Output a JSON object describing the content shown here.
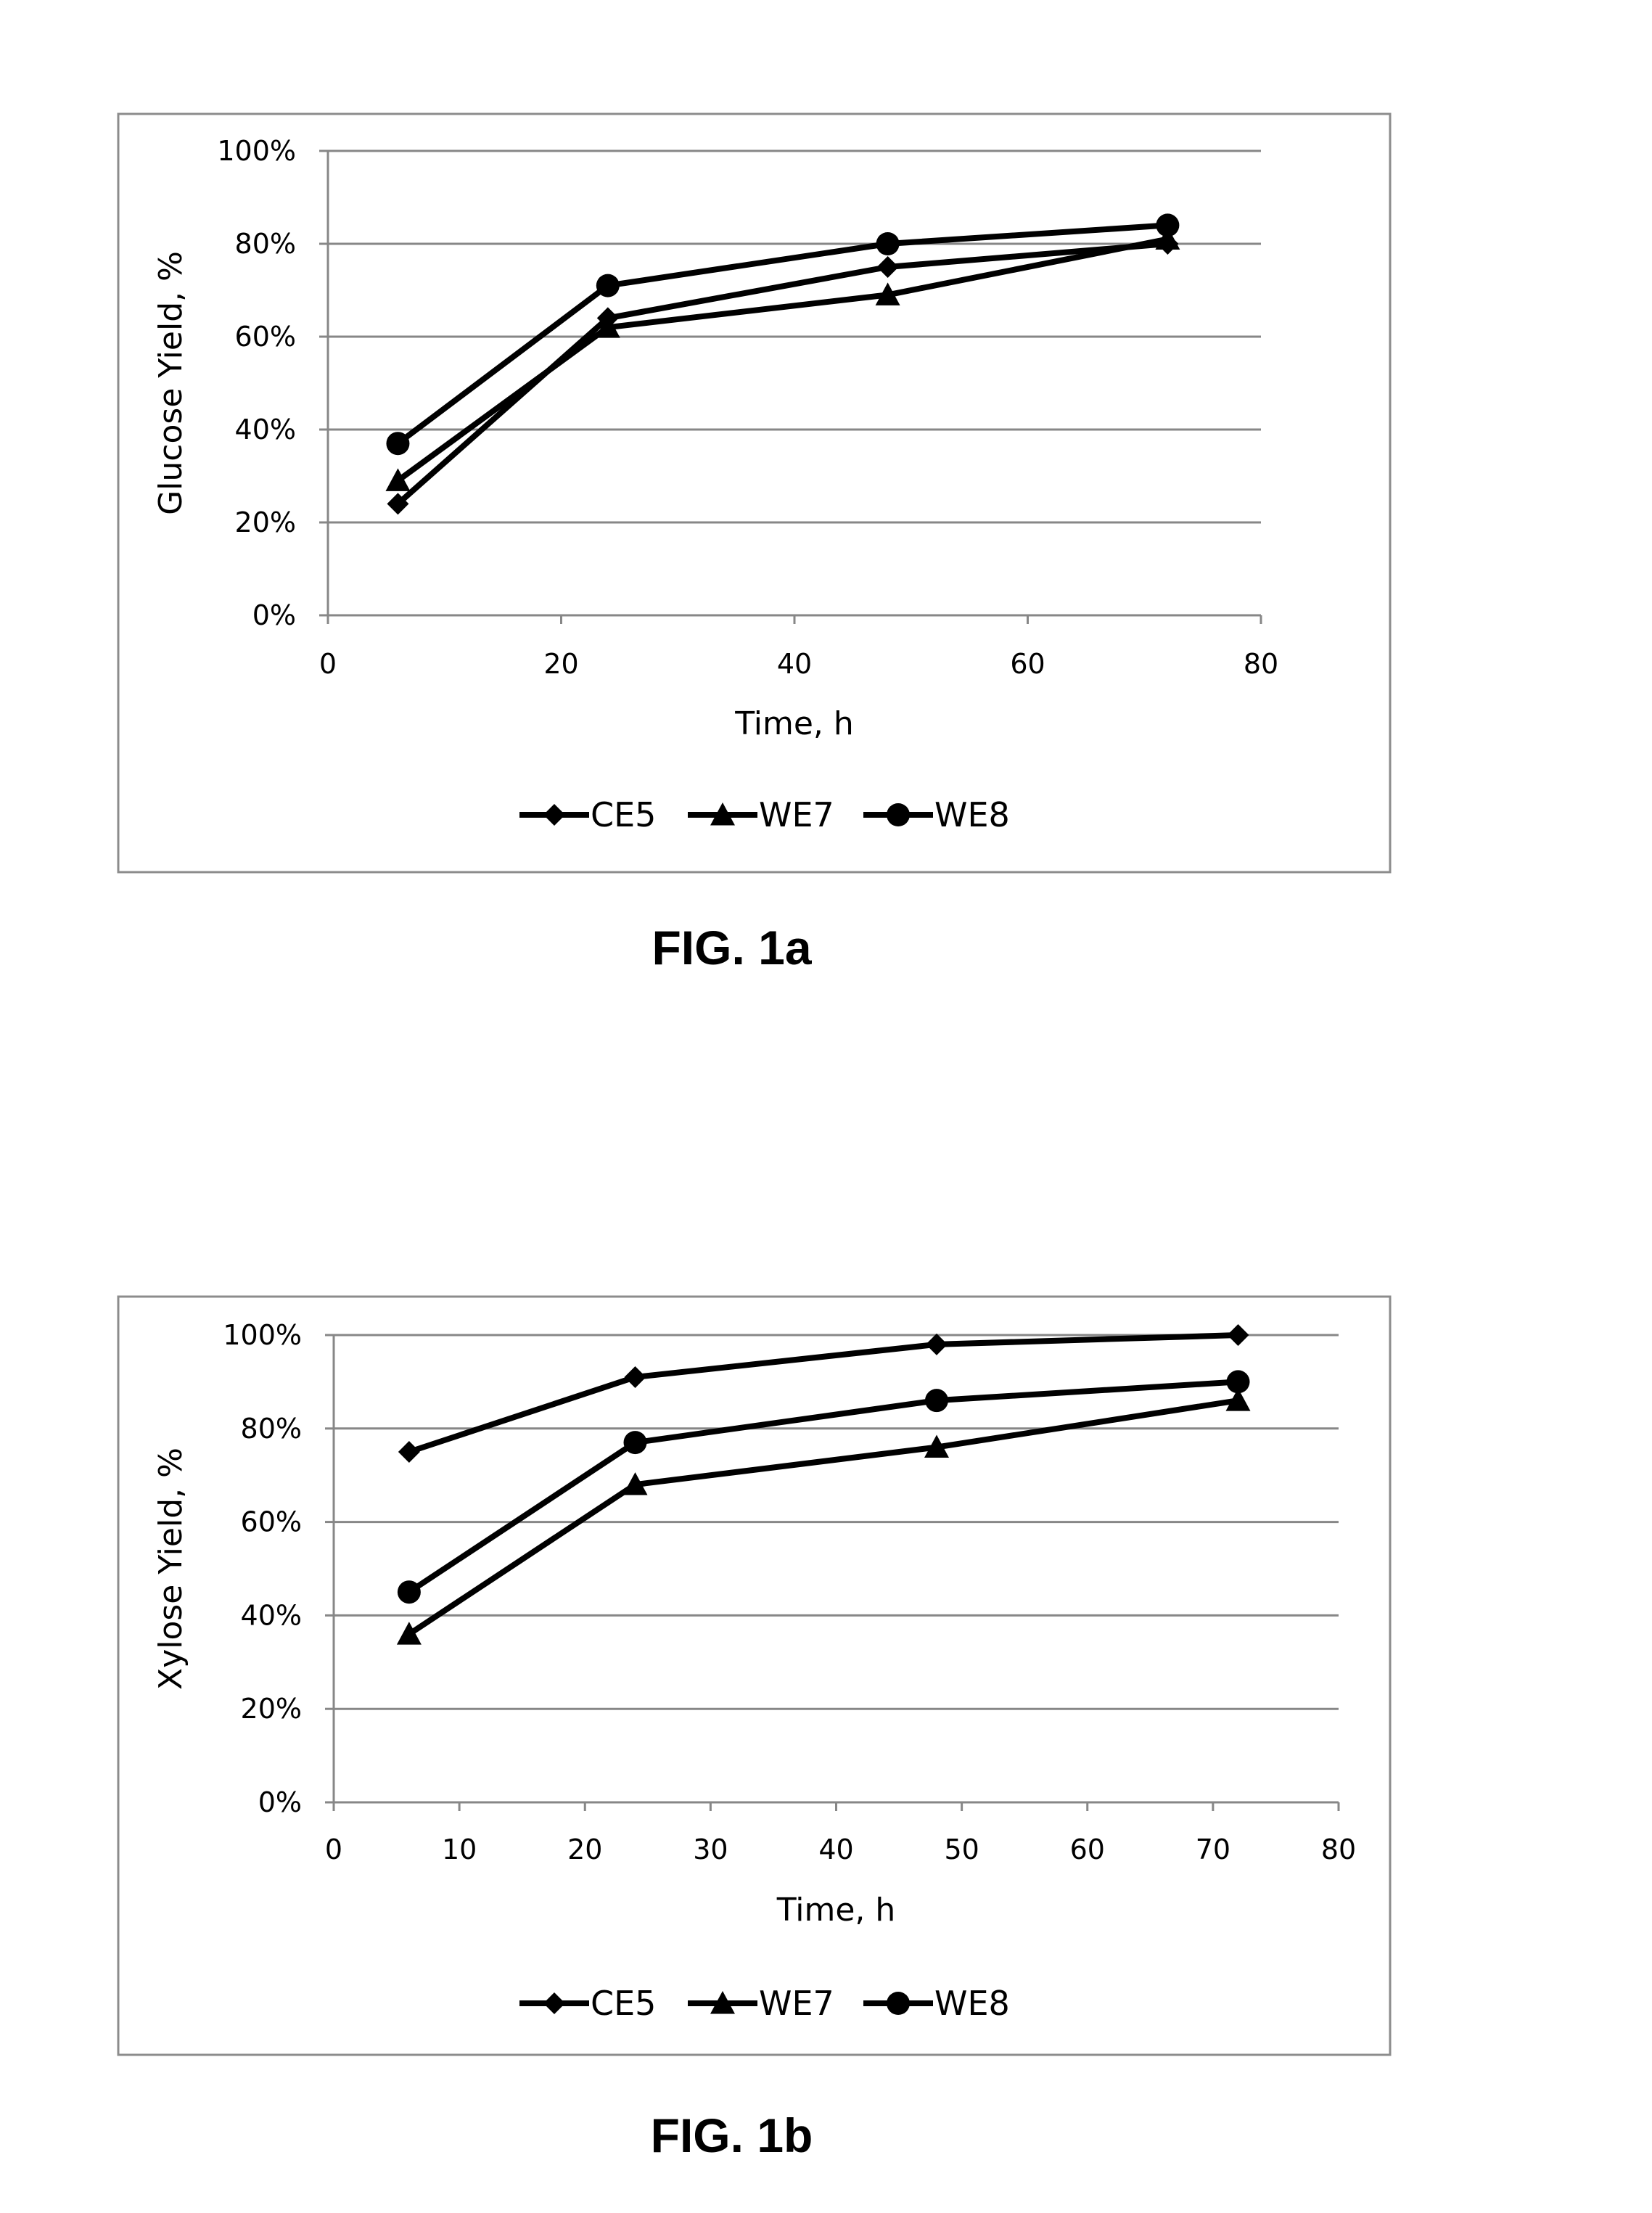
{
  "figures": [
    {
      "caption": "FIG. 1a"
    },
    {
      "caption": "FIG. 1b"
    }
  ],
  "chart_data": [
    {
      "type": "line",
      "xlabel": "Time, h",
      "ylabel": "Glucose Yield, %",
      "xlim": [
        0,
        80
      ],
      "ylim": [
        0,
        100
      ],
      "xticks": [
        0,
        20,
        40,
        60,
        80
      ],
      "yticks": [
        0,
        20,
        40,
        60,
        80,
        100
      ],
      "xtick_labels": [
        "0",
        "20",
        "40",
        "60",
        "80"
      ],
      "ytick_labels": [
        "0%",
        "20%",
        "40%",
        "60%",
        "80%",
        "100%"
      ],
      "grid": "horizontal",
      "legend_position": "bottom",
      "x": [
        6,
        24,
        48,
        72
      ],
      "series": [
        {
          "name": "CE5",
          "marker": "diamond",
          "values": [
            24,
            64,
            75,
            80
          ]
        },
        {
          "name": "WE7",
          "marker": "triangle",
          "values": [
            29,
            62,
            69,
            81
          ]
        },
        {
          "name": "WE8",
          "marker": "circle",
          "values": [
            37,
            71,
            80,
            84
          ]
        }
      ]
    },
    {
      "type": "line",
      "xlabel": "Time, h",
      "ylabel": "Xylose Yield, %",
      "xlim": [
        0,
        80
      ],
      "ylim": [
        0,
        100
      ],
      "xticks": [
        0,
        10,
        20,
        30,
        40,
        50,
        60,
        70,
        80
      ],
      "yticks": [
        0,
        20,
        40,
        60,
        80,
        100
      ],
      "xtick_labels": [
        "0",
        "10",
        "20",
        "30",
        "40",
        "50",
        "60",
        "70",
        "80"
      ],
      "ytick_labels": [
        "0%",
        "20%",
        "40%",
        "60%",
        "80%",
        "100%"
      ],
      "grid": "horizontal",
      "legend_position": "bottom",
      "x": [
        6,
        24,
        48,
        72
      ],
      "series": [
        {
          "name": "CE5",
          "marker": "diamond",
          "values": [
            75,
            91,
            98,
            100
          ]
        },
        {
          "name": "WE7",
          "marker": "triangle",
          "values": [
            36,
            68,
            76,
            86
          ]
        },
        {
          "name": "WE8",
          "marker": "circle",
          "values": [
            45,
            77,
            86,
            90
          ]
        }
      ]
    }
  ]
}
